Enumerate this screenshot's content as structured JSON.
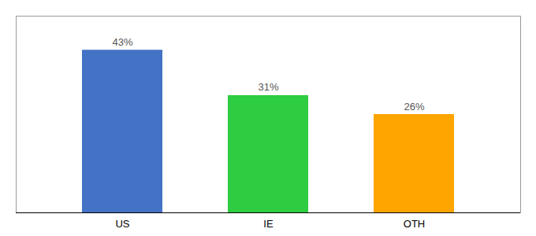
{
  "chart_data": {
    "type": "bar",
    "categories": [
      "US",
      "IE",
      "OTH"
    ],
    "values": [
      43,
      31,
      26
    ],
    "value_labels": [
      "43%",
      "31%",
      "26%"
    ],
    "colors": [
      "#4472C4",
      "#2ECC40",
      "#FFA500"
    ],
    "ylim": [
      0,
      52
    ],
    "data_labels": true,
    "tick_labels": "x"
  }
}
